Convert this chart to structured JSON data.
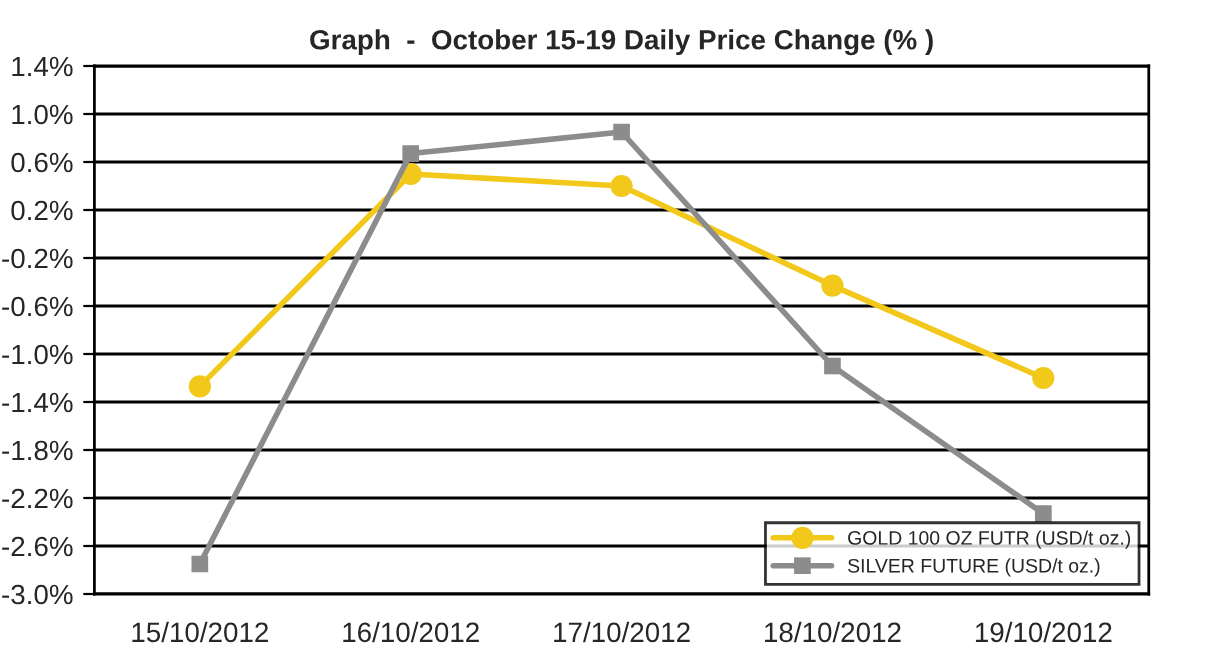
{
  "chart_data": {
    "type": "line",
    "title": "Graph  -  October 15-19 Daily Price Change (% )",
    "categories": [
      "15/10/2012",
      "16/10/2012",
      "17/10/2012",
      "18/10/2012",
      "19/10/2012"
    ],
    "series": [
      {
        "name": "GOLD 100 OZ FUTR (USD/t oz.)",
        "color": "#f2c81a",
        "marker": "circle",
        "values": [
          -1.27,
          0.5,
          0.4,
          -0.43,
          -1.2
        ]
      },
      {
        "name": "SILVER FUTURE (USD/t oz.)",
        "color": "#8c8c8c",
        "marker": "square",
        "values": [
          -2.75,
          0.67,
          0.85,
          -1.1,
          -2.33
        ]
      }
    ],
    "ylim": [
      -3.0,
      1.4
    ],
    "yticks": [
      {
        "value": -3.0,
        "label": "-3.0%"
      },
      {
        "value": -2.6,
        "label": "-2.6%"
      },
      {
        "value": -2.2,
        "label": "-2.2%"
      },
      {
        "value": -1.8,
        "label": "-1.8%"
      },
      {
        "value": -1.4,
        "label": "-1.4%"
      },
      {
        "value": -1.0,
        "label": "-1.0%"
      },
      {
        "value": -0.6,
        "label": "-0.6%"
      },
      {
        "value": -0.2,
        "label": "-0.2%"
      },
      {
        "value": 0.2,
        "label": "0.2%"
      },
      {
        "value": 0.6,
        "label": "0.6%"
      },
      {
        "value": 1.0,
        "label": "1.0%"
      },
      {
        "value": 1.4,
        "label": "1.4%"
      }
    ],
    "grid": "y",
    "legend": "bottom right"
  }
}
